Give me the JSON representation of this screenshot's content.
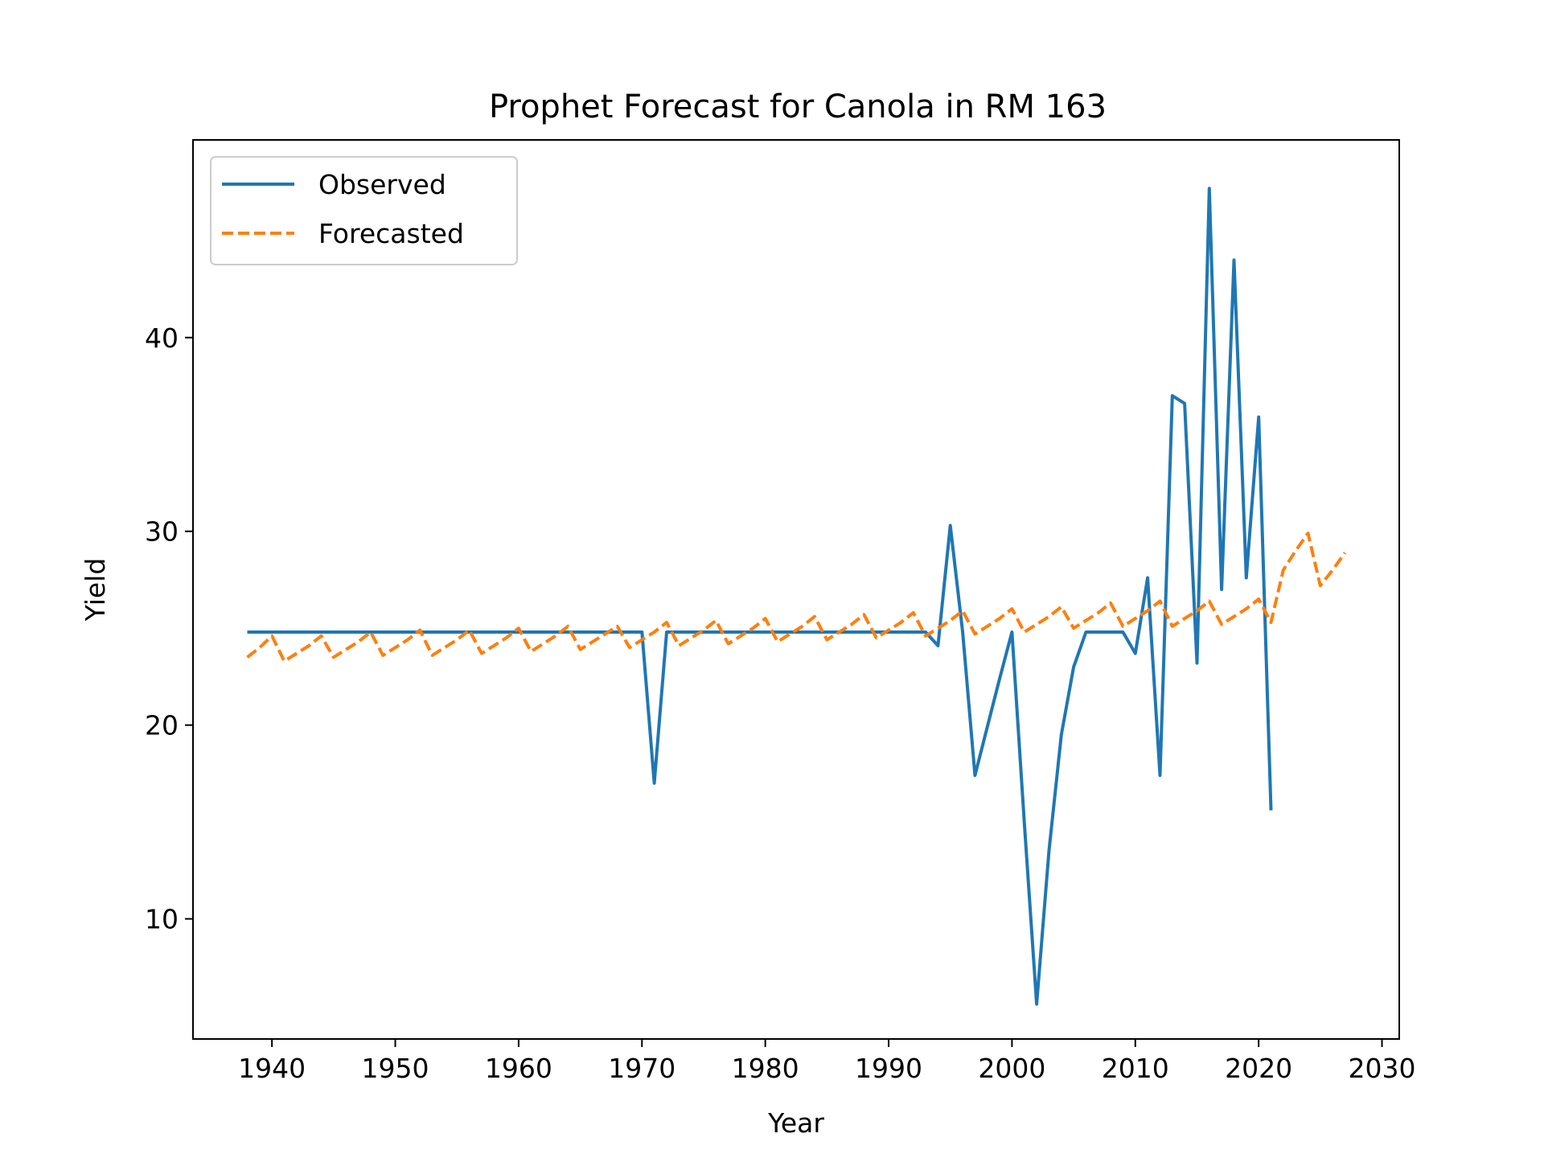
{
  "chart_data": {
    "type": "line",
    "title": "Prophet Forecast for Canola in RM 163",
    "xlabel": "Year",
    "ylabel": "Yield",
    "xlim": [
      1933.6,
      2031.4
    ],
    "ylim": [
      3.8,
      50.2
    ],
    "xticks": [
      1940,
      1950,
      1960,
      1970,
      1980,
      1990,
      2000,
      2010,
      2020,
      2030
    ],
    "yticks": [
      10,
      20,
      30,
      40
    ],
    "grid": false,
    "legend_position": "upper left",
    "series": [
      {
        "name": "Observed",
        "color": "#1f77b4",
        "style": "solid",
        "x": [
          1938,
          1939,
          1940,
          1941,
          1942,
          1943,
          1944,
          1945,
          1946,
          1947,
          1948,
          1949,
          1950,
          1951,
          1952,
          1953,
          1954,
          1955,
          1956,
          1957,
          1958,
          1959,
          1960,
          1961,
          1962,
          1963,
          1964,
          1965,
          1966,
          1967,
          1968,
          1969,
          1970,
          1971,
          1972,
          1973,
          1974,
          1975,
          1976,
          1977,
          1978,
          1979,
          1980,
          1981,
          1982,
          1983,
          1984,
          1985,
          1986,
          1987,
          1988,
          1989,
          1990,
          1991,
          1992,
          1993,
          1994,
          1995,
          1996,
          1997,
          1998,
          1999,
          2000,
          2001,
          2002,
          2003,
          2004,
          2005,
          2006,
          2007,
          2008,
          2009,
          2010,
          2011,
          2012,
          2013,
          2014,
          2015,
          2016,
          2017,
          2018,
          2019,
          2020,
          2021
        ],
        "y": [
          24.8,
          24.8,
          24.8,
          24.8,
          24.8,
          24.8,
          24.8,
          24.8,
          24.8,
          24.8,
          24.8,
          24.8,
          24.8,
          24.8,
          24.8,
          24.8,
          24.8,
          24.8,
          24.8,
          24.8,
          24.8,
          24.8,
          24.8,
          24.8,
          24.8,
          24.8,
          24.8,
          24.8,
          24.8,
          24.8,
          24.8,
          24.8,
          24.8,
          17.0,
          24.8,
          24.8,
          24.8,
          24.8,
          24.8,
          24.8,
          24.8,
          24.8,
          24.8,
          24.8,
          24.8,
          24.8,
          24.8,
          24.8,
          24.8,
          24.8,
          24.8,
          24.8,
          24.8,
          24.8,
          24.8,
          24.8,
          24.1,
          30.3,
          24.8,
          17.4,
          19.9,
          22.4,
          24.8,
          15.0,
          5.6,
          13.5,
          19.5,
          23.0,
          24.8,
          24.8,
          24.8,
          24.8,
          23.7,
          27.6,
          17.4,
          37.0,
          36.6,
          23.2,
          47.7,
          27.0,
          44.0,
          27.6,
          35.9,
          15.6
        ]
      },
      {
        "name": "Forecasted",
        "color": "#ff7f0e",
        "style": "dashed",
        "x": [
          1938,
          1939,
          1940,
          1941,
          1942,
          1943,
          1944,
          1945,
          1946,
          1947,
          1948,
          1949,
          1950,
          1951,
          1952,
          1953,
          1954,
          1955,
          1956,
          1957,
          1958,
          1959,
          1960,
          1961,
          1962,
          1963,
          1964,
          1965,
          1966,
          1967,
          1968,
          1969,
          1970,
          1971,
          1972,
          1973,
          1974,
          1975,
          1976,
          1977,
          1978,
          1979,
          1980,
          1981,
          1982,
          1983,
          1984,
          1985,
          1986,
          1987,
          1988,
          1989,
          1990,
          1991,
          1992,
          1993,
          1994,
          1995,
          1996,
          1997,
          1998,
          1999,
          2000,
          2001,
          2002,
          2003,
          2004,
          2005,
          2006,
          2007,
          2008,
          2009,
          2010,
          2011,
          2012,
          2013,
          2014,
          2015,
          2016,
          2017,
          2018,
          2019,
          2020,
          2021,
          2022,
          2023,
          2024,
          2025,
          2026,
          2027
        ],
        "y": [
          23.5,
          24.0,
          24.6,
          23.3,
          23.7,
          24.1,
          24.6,
          23.5,
          23.9,
          24.3,
          24.8,
          23.6,
          24.0,
          24.4,
          24.9,
          23.6,
          24.0,
          24.4,
          24.9,
          23.7,
          24.1,
          24.5,
          25.0,
          23.8,
          24.2,
          24.6,
          25.1,
          23.9,
          24.3,
          24.7,
          25.1,
          24.0,
          24.4,
          24.8,
          25.3,
          24.1,
          24.5,
          24.9,
          25.4,
          24.2,
          24.6,
          25.0,
          25.5,
          24.3,
          24.7,
          25.1,
          25.6,
          24.4,
          24.8,
          25.2,
          25.7,
          24.5,
          24.9,
          25.3,
          25.8,
          24.6,
          25.0,
          25.4,
          25.9,
          24.7,
          25.1,
          25.5,
          26.0,
          24.8,
          25.2,
          25.6,
          26.1,
          25.0,
          25.4,
          25.8,
          26.3,
          25.1,
          25.5,
          25.9,
          26.4,
          25.1,
          25.5,
          25.9,
          26.4,
          25.2,
          25.6,
          26.0,
          26.5,
          25.3,
          28.0,
          29.0,
          29.9,
          27.2,
          28.0,
          28.9
        ]
      }
    ]
  }
}
